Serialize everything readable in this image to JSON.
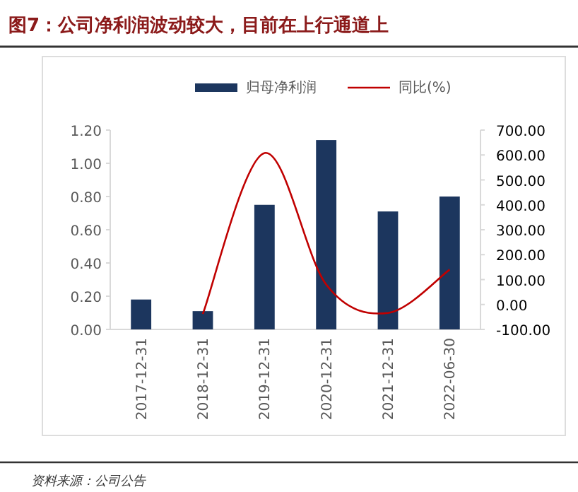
{
  "chart_data": {
    "type": "bar",
    "title": "图7：公司净利润波动较大，目前在上行通道上",
    "categories": [
      "2017-12-31",
      "2018-12-31",
      "2019-12-31",
      "2020-12-31",
      "2021-12-31",
      "2022-06-30"
    ],
    "series": [
      {
        "name": "归母净利润",
        "color": "#1c365e",
        "values": [
          0.18,
          0.11,
          0.75,
          1.14,
          0.71,
          0.8
        ]
      },
      {
        "name": "同比(%)",
        "type": "line",
        "axis": "y2",
        "color": "#c00000",
        "values": [
          null,
          -38,
          608,
          80,
          -34,
          140
        ]
      }
    ],
    "ylim": [
      0,
      1.2
    ],
    "yticks": [
      {
        "value": 0,
        "label": "0.00"
      },
      {
        "value": 0.2,
        "label": "0.20"
      },
      {
        "value": 0.4,
        "label": "0.40"
      },
      {
        "value": 0.6,
        "label": "0.60"
      },
      {
        "value": 0.8,
        "label": "0.80"
      },
      {
        "value": 1.0,
        "label": "1.00"
      },
      {
        "value": 1.2,
        "label": "1.20"
      }
    ],
    "y2lim": [
      -100,
      700
    ],
    "y2ticks": [
      {
        "value": -100,
        "label": "-100.00"
      },
      {
        "value": 0,
        "label": "0.00"
      },
      {
        "value": 100,
        "label": "100.00"
      },
      {
        "value": 200,
        "label": "200.00"
      },
      {
        "value": 300,
        "label": "300.00"
      },
      {
        "value": 400,
        "label": "400.00"
      },
      {
        "value": 500,
        "label": "500.00"
      },
      {
        "value": 600,
        "label": "600.00"
      },
      {
        "value": 700,
        "label": "700.00"
      }
    ],
    "legend": "top",
    "annotations": [
      "资料来源：公司公告"
    ]
  }
}
